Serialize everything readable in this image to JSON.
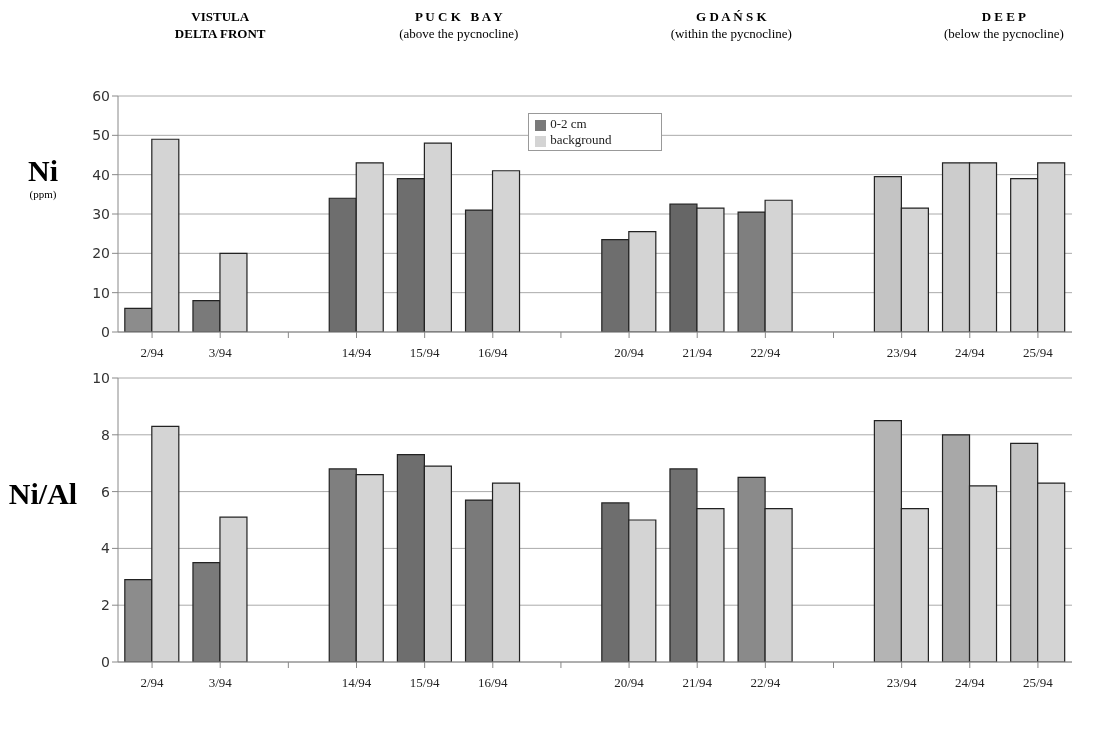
{
  "chart_data": [
    {
      "type": "bar",
      "ylabel": "Ni\n(ppm)",
      "annotations": [
        "VISTULA\nDELTA FRONT",
        "P U C K   B A Y\n(above the pycnocline)",
        "G D A Ń S K\n(within the pycnocline)",
        "D E E P\n(below the pycnocline)"
      ],
      "categories": [
        "2/94",
        "3/94",
        null,
        "14/94",
        "15/94",
        "16/94",
        null,
        "20/94",
        "21/94",
        "22/94",
        null,
        "23/94",
        "24/94",
        "25/94"
      ],
      "series": [
        {
          "name": "0-2 cm",
          "color": "#7a7a7a",
          "colors": [
            "#8c8c8c",
            "#7a7a7a",
            null,
            "#6e6e6e",
            "#6e6e6e",
            "#7a7a7a",
            null,
            "#6e6e6e",
            "#666666",
            "#7f7f7f",
            null,
            "#c4c4c4",
            "#cccccc",
            "#d6d6d6"
          ],
          "values": [
            6,
            8,
            null,
            34,
            39,
            31,
            null,
            23.5,
            32.5,
            30.5,
            null,
            39.5,
            43,
            39
          ]
        },
        {
          "name": "background",
          "color": "#d4d4d4",
          "values": [
            49,
            20,
            null,
            43,
            48,
            41,
            null,
            25.5,
            31.5,
            33.5,
            null,
            31.5,
            43,
            43
          ]
        }
      ],
      "ylim": [
        0,
        60
      ],
      "yticks": [
        0,
        10,
        20,
        30,
        40,
        50,
        60
      ],
      "grid": "y",
      "legend": "top"
    },
    {
      "type": "bar",
      "ylabel": "Ni/Al",
      "categories": [
        "2/94",
        "3/94",
        null,
        "14/94",
        "15/94",
        "16/94",
        null,
        "20/94",
        "21/94",
        "22/94",
        null,
        "23/94",
        "24/94",
        "25/94"
      ],
      "series": [
        {
          "color": "#7a7a7a",
          "colors": [
            "#8c8c8c",
            "#7a7a7a",
            null,
            "#7f7f7f",
            "#6e6e6e",
            "#7a7a7a",
            null,
            "#6e6e6e",
            "#707070",
            "#8a8a8a",
            null,
            "#b4b4b4",
            "#a8a8a8",
            "#c4c4c4"
          ],
          "values": [
            2.9,
            3.5,
            null,
            6.8,
            7.3,
            5.7,
            null,
            5.6,
            6.8,
            6.5,
            null,
            8.5,
            8.0,
            7.7
          ]
        },
        {
          "color": "#d4d4d4",
          "values": [
            8.3,
            5.1,
            null,
            6.6,
            6.9,
            6.3,
            null,
            5.0,
            5.4,
            5.4,
            null,
            5.4,
            6.2,
            6.3
          ]
        }
      ],
      "ylim": [
        0,
        10
      ],
      "yticks": [
        0,
        2,
        4,
        6,
        8,
        10
      ],
      "grid": "y",
      "legend": false
    }
  ]
}
